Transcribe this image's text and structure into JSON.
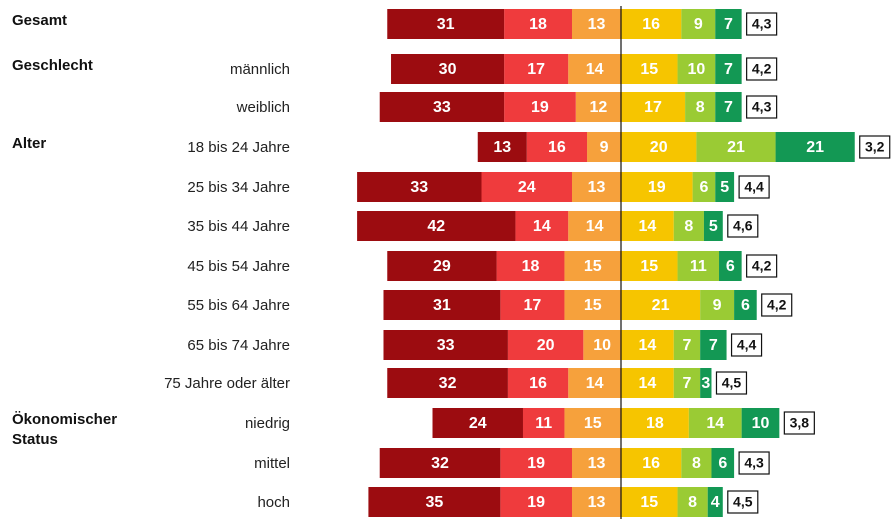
{
  "chart_data": {
    "type": "diverging_bar",
    "group_labels": [
      "Gesamt",
      "Geschlecht",
      null,
      "Alter",
      null,
      null,
      null,
      null,
      null,
      null,
      "Ökonomischer Status",
      null,
      null
    ],
    "categories": [
      null,
      "männlich",
      "weiblich",
      "18 bis 24 Jahre",
      "25 bis 34 Jahre",
      "35 bis 44 Jahre",
      "45 bis 54 Jahre",
      "55 bis 64 Jahre",
      "65 bis 74 Jahre",
      "75 Jahre oder älter",
      "niedrig",
      "mittel",
      "hoch"
    ],
    "series": [
      {
        "color": "#9c0c10",
        "side": "left",
        "values": [
          31,
          30,
          33,
          13,
          33,
          42,
          29,
          31,
          33,
          32,
          24,
          32,
          35
        ]
      },
      {
        "color": "#ef3b3d",
        "side": "left",
        "values": [
          18,
          17,
          19,
          16,
          24,
          14,
          18,
          17,
          20,
          16,
          11,
          19,
          19
        ]
      },
      {
        "color": "#f6a13c",
        "side": "left",
        "values": [
          13,
          14,
          12,
          9,
          13,
          14,
          15,
          15,
          10,
          14,
          15,
          13,
          13
        ]
      },
      {
        "color": "#f6c500",
        "side": "right",
        "values": [
          16,
          15,
          17,
          20,
          19,
          14,
          15,
          21,
          14,
          14,
          18,
          16,
          15
        ]
      },
      {
        "color": "#9acb34",
        "side": "right",
        "values": [
          9,
          10,
          8,
          21,
          6,
          8,
          11,
          9,
          7,
          7,
          14,
          8,
          8
        ]
      },
      {
        "color": "#139854",
        "side": "right",
        "values": [
          7,
          7,
          7,
          21,
          5,
          5,
          6,
          6,
          7,
          3,
          10,
          6,
          4
        ]
      }
    ],
    "means": [
      4.3,
      4.2,
      4.3,
      3.2,
      4.4,
      4.6,
      4.2,
      4.2,
      4.4,
      4.5,
      3.8,
      4.3,
      4.5
    ],
    "mean_labels": [
      "4,3",
      "4,2",
      "4,3",
      "3,2",
      "4,4",
      "4,6",
      "4,2",
      "4,2",
      "4,4",
      "4,5",
      "3,8",
      "4,3",
      "4,5"
    ]
  }
}
